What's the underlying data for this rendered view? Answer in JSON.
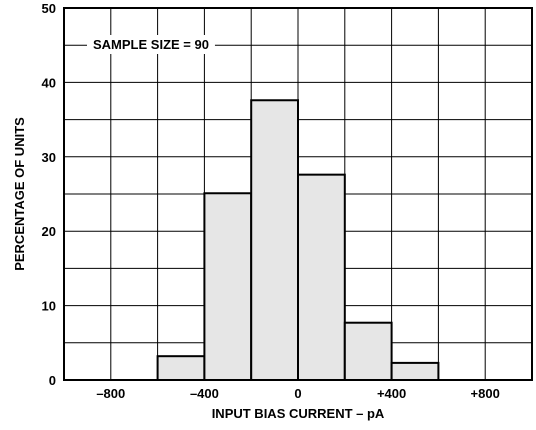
{
  "chart_data": {
    "type": "bar",
    "title": "",
    "xlabel": "INPUT BIAS CURRENT – pA",
    "ylabel": "PERCENTAGE OF UNITS",
    "annotation": "SAMPLE SIZE = 90",
    "xlim": [
      -1000,
      1000
    ],
    "ylim": [
      0,
      50
    ],
    "x_ticks": [
      -800,
      -400,
      0,
      400,
      800
    ],
    "x_tick_labels": [
      "–800",
      "–400",
      "0",
      "+400",
      "+800"
    ],
    "y_ticks": [
      0,
      10,
      20,
      30,
      40,
      50
    ],
    "y_tick_labels": [
      "0",
      "10",
      "20",
      "30",
      "40",
      "50"
    ],
    "bin_width": 200,
    "bins": [
      {
        "start": -600,
        "end": -400,
        "value": 3.2
      },
      {
        "start": -400,
        "end": -200,
        "value": 25.1
      },
      {
        "start": -200,
        "end": 0,
        "value": 37.6
      },
      {
        "start": 0,
        "end": 200,
        "value": 27.6
      },
      {
        "start": 200,
        "end": 400,
        "value": 7.7
      },
      {
        "start": 400,
        "end": 600,
        "value": 2.3
      }
    ],
    "grid": true,
    "bar_fill": "#e6e6e6",
    "bar_stroke": "#000000"
  }
}
